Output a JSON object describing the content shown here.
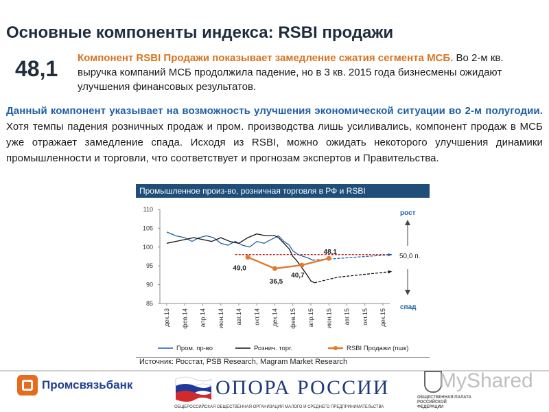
{
  "slide": {
    "title": "Основные компоненты индекса: RSBI продажи",
    "index_value": "48,1",
    "lead_highlight": "Компонент RSBI Продажи показывает замедление сжатия сегмента МСБ.",
    "lead_text": " Во 2-м кв. выручка компаний МСБ продолжила падение, но в 3 кв. 2015 года бизнесмены ожидают улучшения финансовых результатов.",
    "para_highlight": "Данный компонент указывает на возможность улучшения экономической ситуации во 2-м полугодии.",
    "para_text": " Хотя темпы падения розничных продаж и пром. производства лишь усиливались, компонент продаж в МСБ уже отражает замедление спада. Исходя из RSBI, можно ожидать некоторого улучшения динамики промышленности и торговли, что соответствует и прогнозам экспертов и Правительства."
  },
  "chart_header": "Промышленное произ-во, розничная торговля в РФ и RSBI",
  "chart_data": {
    "type": "line",
    "title": "Промышленное произ-во, розничная торговля в РФ и RSBI",
    "x_ticks": [
      "дек.13",
      "фев.14",
      "апр.14",
      "июн.14",
      "авг.14",
      "окт.14",
      "дек.14",
      "фев.15",
      "апр.15",
      "июн.15",
      "авг.15",
      "окт.15",
      "дек.15"
    ],
    "y_ticks": [
      "110",
      "105",
      "100",
      "95",
      "90",
      "85"
    ],
    "ylim": [
      85,
      110
    ],
    "series": [
      {
        "name": "Пром. пр-во",
        "color": "#1f5fa8",
        "points": [
          [
            0,
            104
          ],
          [
            0.5,
            103
          ],
          [
            1,
            102.5
          ],
          [
            1.4,
            101.5
          ],
          [
            1.8,
            102.5
          ],
          [
            2.2,
            103
          ],
          [
            2.6,
            102.5
          ],
          [
            3,
            101
          ],
          [
            3.4,
            100.5
          ],
          [
            3.8,
            101.5
          ],
          [
            4.2,
            100.5
          ],
          [
            4.6,
            100
          ],
          [
            5,
            101.5
          ],
          [
            5.4,
            101
          ],
          [
            5.8,
            102
          ],
          [
            6.2,
            103
          ],
          [
            6.5,
            101.5
          ],
          [
            6.8,
            100.5
          ],
          [
            7,
            99
          ],
          [
            7.3,
            98
          ],
          [
            7.6,
            97.5
          ],
          [
            7.9,
            97
          ],
          [
            8.1,
            96.5
          ]
        ]
      },
      {
        "name": "Рознич. торг.",
        "color": "#111111",
        "points": [
          [
            0,
            101
          ],
          [
            0.5,
            101.5
          ],
          [
            1,
            102
          ],
          [
            1.5,
            102.5
          ],
          [
            2,
            102
          ],
          [
            2.5,
            101.5
          ],
          [
            3,
            102.5
          ],
          [
            3.5,
            101.5
          ],
          [
            4,
            101
          ],
          [
            4.5,
            102.5
          ],
          [
            5,
            103.5
          ],
          [
            5.5,
            103
          ],
          [
            6,
            103
          ],
          [
            6.2,
            102.5
          ],
          [
            6.4,
            101.5
          ],
          [
            6.8,
            99.5
          ],
          [
            7,
            97.5
          ],
          [
            7.2,
            96.5
          ],
          [
            7.5,
            94.5
          ],
          [
            7.8,
            92.5
          ],
          [
            8,
            91
          ],
          [
            8.2,
            90.5
          ]
        ]
      },
      {
        "name": "RSBI Продажи (пшк)",
        "color": "#e07a2e",
        "points": [
          [
            4.5,
            97.3
          ],
          [
            6,
            94.3
          ],
          [
            7.5,
            95.2
          ],
          [
            9,
            97
          ]
        ],
        "labels": [
          "49,0",
          "36,5",
          "40,7",
          "48,1"
        ]
      }
    ],
    "forecasts": [
      {
        "color": "#1f5fa8",
        "points": [
          [
            8.1,
            96.5
          ],
          [
            12.5,
            98
          ]
        ]
      },
      {
        "color": "#111111",
        "points": [
          [
            8.2,
            90.5
          ],
          [
            9.5,
            92
          ],
          [
            12.5,
            93.5
          ]
        ]
      }
    ],
    "threshold": {
      "value": 98,
      "from": 3.8,
      "to": 12.5,
      "label": "50,0 п.",
      "color": "#c00000"
    },
    "annotations": {
      "up": "рост",
      "down": "спад"
    },
    "legend_position": "bottom"
  },
  "source": "Источник: Росстат, PSB Research, Magram Market Research",
  "footer": {
    "psb_name": "Промсвязьбанк",
    "psb_mark": "PSB",
    "opora_name": "ОПОРА РОССИИ",
    "opora_sub": "ОБЩЕРОССИЙСКАЯ ОБЩЕСТВЕННАЯ ОРГАНИЗАЦИЯ МАЛОГО И СРЕДНЕГО ПРЕДПРИНИМАТЕЛЬСТВА",
    "chamber_caption": "ОБЩЕСТВЕННАЯ ПАЛАТА РОССИЙСКОЙ ФЕДЕРАЦИИ",
    "watermark": "MyShared"
  }
}
